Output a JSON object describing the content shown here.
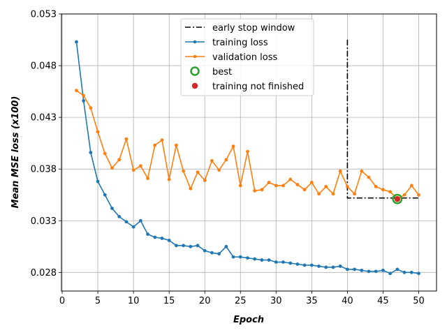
{
  "chart_data": {
    "type": "line",
    "title": "",
    "xlabel": "Epoch",
    "ylabel": "Mean MSE loss (x100)",
    "xlim": [
      -0.1,
      52.5
    ],
    "ylim": [
      0.0262,
      0.053
    ],
    "xticks": [
      0,
      5,
      10,
      15,
      20,
      25,
      30,
      35,
      40,
      45,
      50
    ],
    "yticks": [
      0.028,
      0.033,
      0.038,
      0.043,
      0.048,
      0.053
    ],
    "ytick_labels": [
      "0.028",
      "0.033",
      "0.038",
      "0.043",
      "0.048",
      "0.053"
    ],
    "grid": true,
    "legend_position": "top-center",
    "x": [
      2,
      3,
      4,
      5,
      6,
      7,
      8,
      9,
      10,
      11,
      12,
      13,
      14,
      15,
      16,
      17,
      18,
      19,
      20,
      21,
      22,
      23,
      24,
      25,
      26,
      27,
      28,
      29,
      30,
      31,
      32,
      33,
      34,
      35,
      36,
      37,
      38,
      39,
      40,
      41,
      42,
      43,
      44,
      45,
      46,
      47,
      48,
      49,
      50
    ],
    "series": [
      {
        "name": "training loss",
        "color": "#1f77b4",
        "values": [
          0.0503,
          0.0446,
          0.0396,
          0.0368,
          0.0355,
          0.0342,
          0.0334,
          0.0329,
          0.0324,
          0.033,
          0.0317,
          0.0314,
          0.0313,
          0.0311,
          0.0306,
          0.0306,
          0.0305,
          0.0306,
          0.0301,
          0.0299,
          0.0298,
          0.0305,
          0.0295,
          0.0295,
          0.0294,
          0.0293,
          0.0292,
          0.0292,
          0.029,
          0.029,
          0.0289,
          0.0288,
          0.0287,
          0.0287,
          0.0286,
          0.0285,
          0.0285,
          0.0286,
          0.0283,
          0.0283,
          0.0282,
          0.0281,
          0.0281,
          0.0282,
          0.0279,
          0.0283,
          0.028,
          0.028,
          0.0279
        ]
      },
      {
        "name": "validation loss",
        "color": "#ff7f0e",
        "values": [
          0.0456,
          0.0451,
          0.0439,
          0.0416,
          0.0395,
          0.0381,
          0.0389,
          0.0409,
          0.0379,
          0.0383,
          0.0371,
          0.0403,
          0.0408,
          0.037,
          0.0403,
          0.0378,
          0.0361,
          0.0377,
          0.0369,
          0.0388,
          0.0379,
          0.0389,
          0.0402,
          0.0364,
          0.0397,
          0.0359,
          0.036,
          0.0367,
          0.0364,
          0.0364,
          0.037,
          0.0365,
          0.036,
          0.0367,
          0.0356,
          0.0363,
          0.0356,
          0.0378,
          0.0363,
          0.0356,
          0.0378,
          0.0372,
          0.0363,
          0.036,
          0.0358,
          0.0351,
          0.0355,
          0.0364,
          0.0355
        ]
      }
    ],
    "early_stop_window": {
      "name": "early stop window",
      "color": "#000000",
      "x_start": 40,
      "x_end": 50,
      "y_top": 0.0505,
      "y_level": 0.0352
    },
    "best": {
      "name": "best",
      "epoch": 47,
      "value": 0.0351,
      "color": "#2ca02c"
    },
    "unfinished": {
      "name": "training not finished",
      "epoch": 47,
      "value": 0.0351,
      "color": "#d62728"
    }
  }
}
